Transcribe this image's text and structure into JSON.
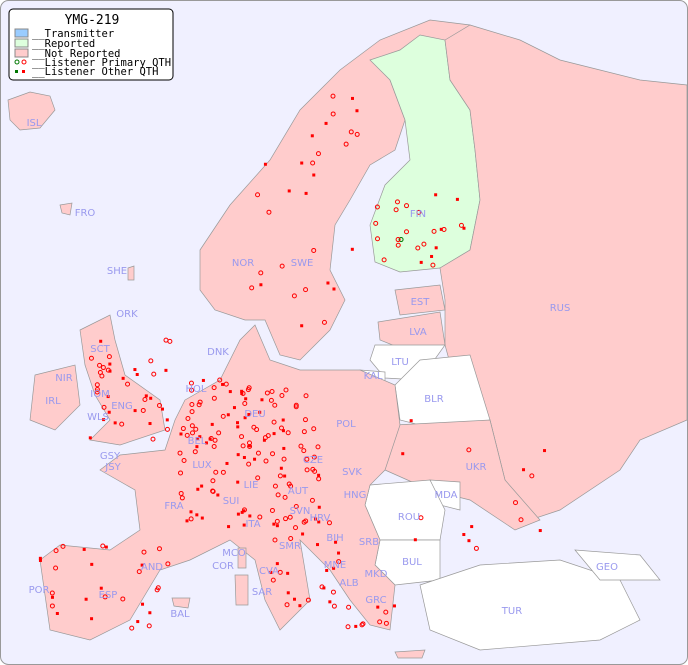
{
  "title": "YMG-219",
  "legend": [
    {
      "label": "__Transmitter",
      "color": "#99ccff"
    },
    {
      "label": "__Reported",
      "color": "#ddffdd"
    },
    {
      "label": "__Not Reported",
      "color": "#ffcccc"
    },
    {
      "label": "__Listener Primary QTH",
      "symbol": "circle"
    },
    {
      "label": "__Listener Other QTH",
      "symbol": "square"
    }
  ],
  "colors": {
    "sea": "#f0f0ff",
    "not_reported": "#ffcccc",
    "reported": "#ddffdd",
    "no_data": "#ffffff",
    "label": "#9999ee",
    "listener": "#ff0000",
    "listener_reported": "#007700"
  },
  "countries": {
    "reported": [
      "FIN"
    ],
    "not_reported": [
      "ISL",
      "FRO",
      "SHE",
      "ORK",
      "NOR",
      "SWE",
      "EST",
      "LVA",
      "RUS",
      "DNK",
      "HOL",
      "IRL",
      "NIR",
      "SCT",
      "IOM",
      "WLS",
      "ENG",
      "BEL",
      "DEU",
      "POL",
      "CZE",
      "SVK",
      "UKR",
      "GSY",
      "JSY",
      "LUX",
      "FRA",
      "SUI",
      "LIE",
      "AUT",
      "HNG",
      "SVN",
      "HRV",
      "ITA",
      "MCO",
      "COR",
      "SMR",
      "BIH",
      "SRB",
      "MNE",
      "ALB",
      "MKD",
      "GRC",
      "AND",
      "POR",
      "ESP",
      "BAL",
      "SAR",
      "CVA"
    ],
    "no_data": [
      "LTU",
      "KAL",
      "BLR",
      "MDA",
      "ROU",
      "BUL",
      "TUR",
      "GEO"
    ]
  },
  "labels": [
    "ISL",
    "FRO",
    "SHE",
    "ORK",
    "NOR",
    "SWE",
    "FIN",
    "EST",
    "LVA",
    "RUS",
    "LTU",
    "KAL",
    "BLR",
    "DNK",
    "HOL",
    "IRL",
    "NIR",
    "SCT",
    "IOM",
    "WLS",
    "ENG",
    "BEL",
    "DEU",
    "POL",
    "CZE",
    "SVK",
    "UKR",
    "MDA",
    "GSY",
    "JSY",
    "LUX",
    "FRA",
    "SUI",
    "LIE",
    "AUT",
    "HNG",
    "SVN",
    "HRV",
    "ROU",
    "ITA",
    "MCO",
    "COR",
    "SMR",
    "BIH",
    "SRB",
    "BUL",
    "MNE",
    "ALB",
    "MKD",
    "GRC",
    "TUR",
    "GEO",
    "AND",
    "POR",
    "ESP",
    "BAL",
    "SAR",
    "CVA"
  ]
}
